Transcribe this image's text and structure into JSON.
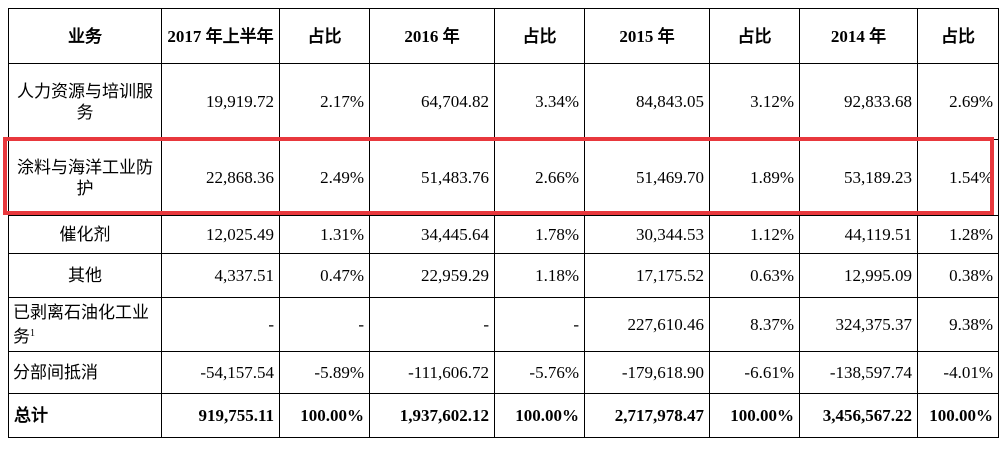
{
  "header": {
    "business": "业务",
    "h1_2017": "2017 年上半年",
    "share_1": "占比",
    "y2016": "2016 年",
    "share_2": "占比",
    "y2015": "2015 年",
    "share_3": "占比",
    "y2014": "2014 年",
    "share_4": "占比"
  },
  "rows": [
    {
      "label": "人力资源与培训服务",
      "c1": "19,919.72",
      "p1": "2.17%",
      "c2": "64,704.82",
      "p2": "3.34%",
      "c3": "84,843.05",
      "p3": "3.12%",
      "c4": "92,833.68",
      "p4": "2.69%"
    },
    {
      "label": "涂料与海洋工业防护",
      "c1": "22,868.36",
      "p1": "2.49%",
      "c2": "51,483.76",
      "p2": "2.66%",
      "c3": "51,469.70",
      "p3": "1.89%",
      "c4": "53,189.23",
      "p4": "1.54%"
    },
    {
      "label": "催化剂",
      "c1": "12,025.49",
      "p1": "1.31%",
      "c2": "34,445.64",
      "p2": "1.78%",
      "c3": "30,344.53",
      "p3": "1.12%",
      "c4": "44,119.51",
      "p4": "1.28%"
    },
    {
      "label": "其他",
      "c1": "4,337.51",
      "p1": "0.47%",
      "c2": "22,959.29",
      "p2": "1.18%",
      "c3": "17,175.52",
      "p3": "0.63%",
      "c4": "12,995.09",
      "p4": "0.38%"
    },
    {
      "label": "已剥离石油化工业务",
      "label_sup": "1",
      "c1": "-",
      "p1": "-",
      "c2": "-",
      "p2": "-",
      "c3": "227,610.46",
      "p3": "8.37%",
      "c4": "324,375.37",
      "p4": "9.38%"
    },
    {
      "label": "分部间抵消",
      "c1": "-54,157.54",
      "p1": "-5.89%",
      "c2": "-111,606.72",
      "p2": "-5.76%",
      "c3": "-179,618.90",
      "p3": "-6.61%",
      "c4": "-138,597.74",
      "p4": "-4.01%"
    }
  ],
  "total": {
    "label": "总计",
    "c1": "919,755.11",
    "p1": "100.00%",
    "c2": "1,937,602.12",
    "p2": "100.00%",
    "c3": "2,717,978.47",
    "p3": "100.00%",
    "c4": "3,456,567.22",
    "p4": "100.00%"
  },
  "highlight_color": "#e8383d"
}
